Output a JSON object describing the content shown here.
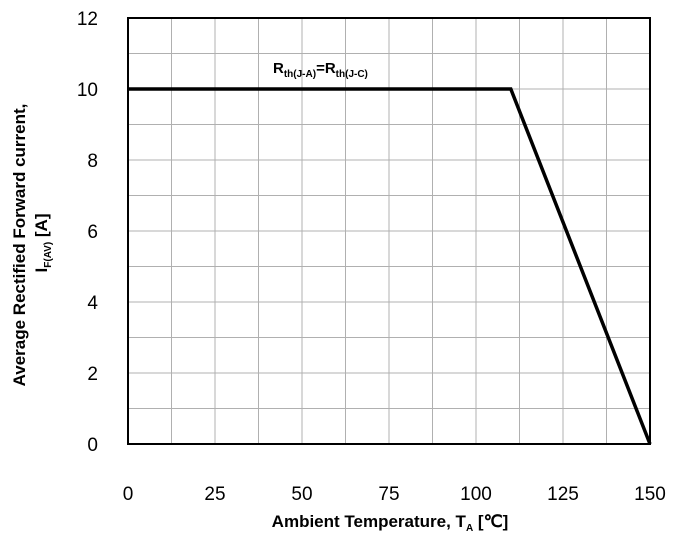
{
  "chart_data": {
    "type": "line",
    "x_ticks": [
      "0",
      "25",
      "50",
      "75",
      "100",
      "125",
      "150"
    ],
    "y_ticks": [
      "0",
      "2",
      "4",
      "6",
      "8",
      "10",
      "12"
    ],
    "xlim": [
      0,
      150
    ],
    "ylim": [
      0,
      12
    ],
    "x_minor_step": 12.5,
    "y_minor_step": 1,
    "grid": true,
    "series": [
      {
        "x": [
          0,
          110,
          150
        ],
        "y": [
          10,
          10,
          0
        ]
      }
    ],
    "xlabel": {
      "main": "Ambient Temperature,  T",
      "sub": "A",
      "unit": " [℃]"
    },
    "ylabel": {
      "line1": "Average Rectified Forward current,",
      "line2_main": "I",
      "line2_sub": "F(AV)",
      "line2_unit": " [A]"
    },
    "annotation": {
      "r1": "R",
      "sub1": "th(J-A)",
      "eq": "=",
      "r2": "R",
      "sub2": "th(J-C)"
    },
    "colors": {
      "grid": "#b0b0b0",
      "line": "#000000",
      "frame": "#000000"
    }
  }
}
